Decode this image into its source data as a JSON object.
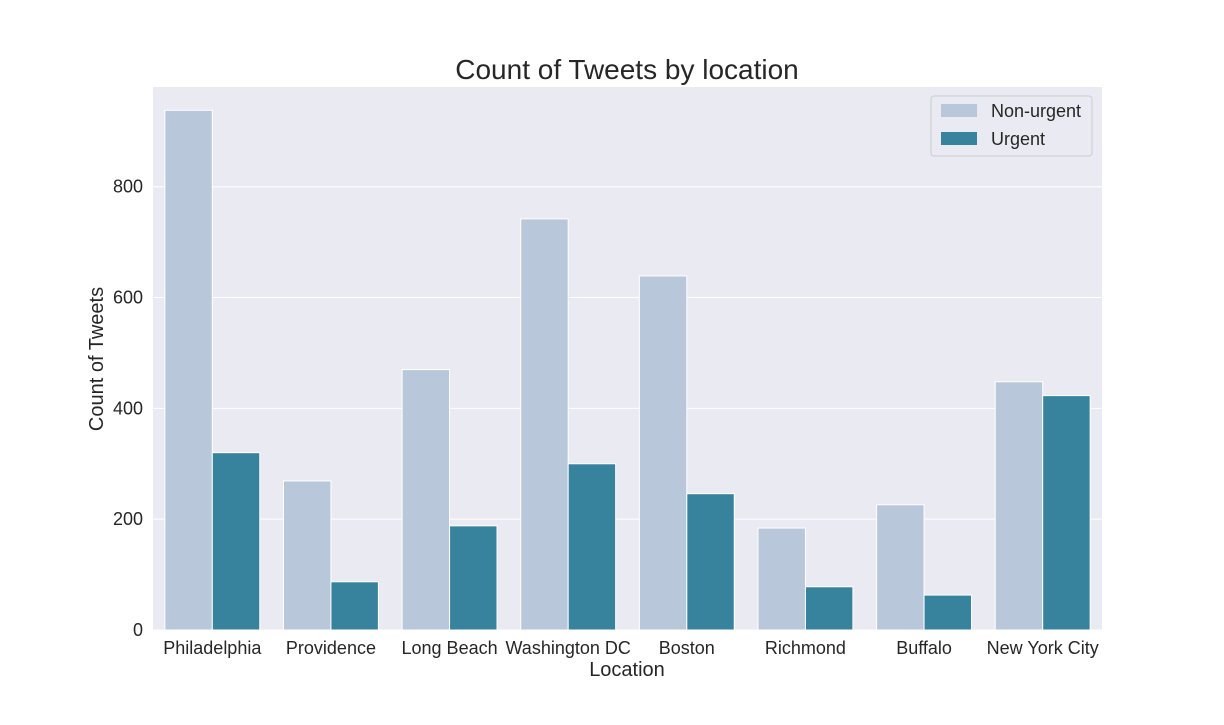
{
  "chart_data": {
    "type": "bar",
    "title": "Count of Tweets by location",
    "xlabel": "Location",
    "ylabel": "Count of Tweets",
    "categories": [
      "Philadelphia",
      "Providence",
      "Long Beach",
      "Washington DC",
      "Boston",
      "Richmond",
      "Buffalo",
      "New York City"
    ],
    "series": [
      {
        "name": "Non-urgent",
        "color": "#b9c7da",
        "values": [
          938,
          269,
          470,
          742,
          639,
          184,
          226,
          448
        ]
      },
      {
        "name": "Urgent",
        "color": "#37829c",
        "values": [
          320,
          87,
          188,
          300,
          246,
          78,
          63,
          423
        ]
      }
    ],
    "ylim": [
      0,
      980
    ],
    "yticks": [
      0,
      200,
      400,
      600,
      800
    ],
    "grid": true,
    "legend_position": "top-right",
    "background_color": "#eaeaf2",
    "grid_color": "#ffffff"
  }
}
